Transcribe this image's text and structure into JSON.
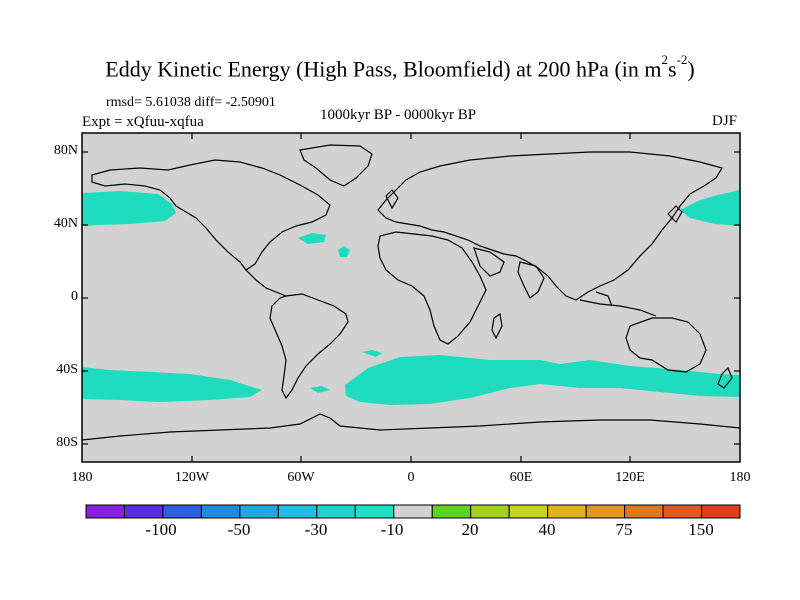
{
  "title_main": "Eddy Kinetic Energy (High Pass, Bloomfield) at 200 hPa (in m",
  "title_sup1": "2",
  "title_mid": "s",
  "title_sup2": "-2",
  "title_end": ")",
  "rmsd_line": "rmsd= 5.61038 diff= -2.50901",
  "expt_line": "Expt = xQfuu-xqfua",
  "period": "1000kyr BP - 0000kyr BP",
  "season": "DJF",
  "y_ticks": [
    "80N",
    "40N",
    "0",
    "40S",
    "80S"
  ],
  "x_ticks": [
    "180",
    "120W",
    "60W",
    "0",
    "60E",
    "120E",
    "180"
  ],
  "colorbar": {
    "colors": [
      "#8a1fe0",
      "#5a2de0",
      "#2e5fe0",
      "#1f8ae0",
      "#1fa7e0",
      "#1fbde0",
      "#1fd2d2",
      "#1fe0c0",
      "#d2d2d2",
      "#5fd21f",
      "#a0d21f",
      "#c8d21f",
      "#e0b41f",
      "#e0961f",
      "#e0781f",
      "#e05a1f",
      "#e03c1f"
    ],
    "labels": [
      "-100",
      "-50",
      "-30",
      "-10",
      "20",
      "40",
      "75",
      "150"
    ]
  },
  "fill_colors": {
    "ocean": "#d2d2d2",
    "anomaly": "#1fdcbe"
  }
}
